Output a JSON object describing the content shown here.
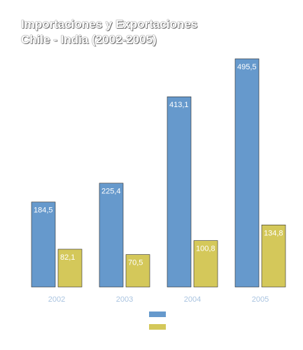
{
  "title_line1": "Importaciones y Exportaciones",
  "title_line2": "Chile - India (2002-2005)",
  "colors": {
    "series_a": "#6699cc",
    "series_b": "#d4c85a",
    "bar_border": "#2a2a2a",
    "tick": "#aac4e0"
  },
  "chart_data": {
    "type": "bar",
    "title": "Importaciones y Exportaciones Chile - India (2002-2005)",
    "categories": [
      "2002",
      "2003",
      "2004",
      "2005"
    ],
    "series": [
      {
        "values": [
          184.5,
          225.4,
          413.1,
          495.5
        ],
        "labels": [
          "184,5",
          "225,4",
          "413,1",
          "495,5"
        ]
      },
      {
        "values": [
          82.1,
          70.5,
          100.8,
          134.8
        ],
        "labels": [
          "82,1",
          "70,5",
          "100,8",
          "134,8"
        ]
      }
    ],
    "ylim": [
      0,
      495.5
    ],
    "grid": false,
    "legend_position": "bottom"
  }
}
